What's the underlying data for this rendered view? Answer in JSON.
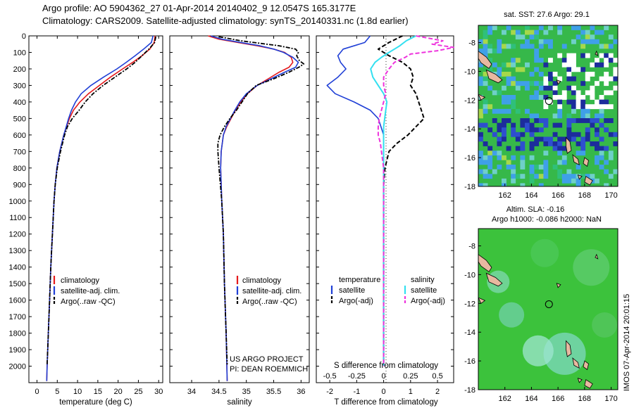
{
  "header": {
    "title_line1": "Argo profile: AO 5904362_27 01-Apr-2014 20140402_9 12.0547S 165.3177E",
    "title_line2": "Climatology: CARS2009. Satellite-adjusted climatology: synTS_20140331.nc (1.8d earlier)"
  },
  "colors": {
    "climatology": "#e41a1c",
    "satellite": "#1f3fd6",
    "argo": "#000000",
    "cyan": "#33e0f0",
    "magenta": "#ee33dd",
    "map_green": "#3cc23c",
    "land": "#e8b8a0"
  },
  "depth_axis": {
    "ylim": [
      0,
      2100
    ],
    "ticks": [
      0,
      100,
      200,
      300,
      400,
      500,
      600,
      700,
      800,
      900,
      1000,
      1100,
      1200,
      1300,
      1400,
      1500,
      1600,
      1700,
      1800,
      1900,
      2000
    ]
  },
  "chart_data": [
    {
      "type": "line",
      "id": "temperature",
      "xlabel": "temperature (deg C)",
      "xlim": [
        -2,
        31
      ],
      "xticks": [
        0,
        5,
        10,
        15,
        20,
        25,
        30
      ],
      "legend": [
        "climatology",
        "satellite-adj. clim.",
        "Argo(..raw -QC)"
      ],
      "series": [
        {
          "name": "climatology",
          "depth": [
            0,
            40,
            80,
            120,
            160,
            200,
            250,
            300,
            350,
            400,
            450,
            500,
            550,
            600,
            700,
            800,
            900,
            1000,
            1200,
            1400,
            1600,
            1800,
            2000,
            2090
          ],
          "values": [
            29.1,
            28.9,
            27.8,
            25.9,
            23.6,
            21.1,
            18.1,
            15.4,
            12.7,
            10.6,
            9.0,
            8.0,
            7.3,
            6.6,
            5.6,
            4.9,
            4.5,
            4.2,
            3.8,
            3.4,
            3.1,
            2.8,
            2.5,
            2.4
          ]
        },
        {
          "name": "satellite-adj. clim.",
          "depth": [
            0,
            40,
            80,
            120,
            160,
            200,
            250,
            300,
            350,
            400,
            450,
            500,
            550,
            600,
            700,
            800,
            900,
            1000,
            1200,
            1400,
            1600,
            1800,
            2000,
            2090
          ],
          "values": [
            28.6,
            28.2,
            26.3,
            24.2,
            22.0,
            19.7,
            16.4,
            13.3,
            10.9,
            9.5,
            8.5,
            7.8,
            7.2,
            6.6,
            5.6,
            4.9,
            4.5,
            4.2,
            3.8,
            3.4,
            3.1,
            2.8,
            2.5,
            2.4
          ]
        },
        {
          "name": "Argo(..raw -QC)",
          "depth": [
            5,
            40,
            80,
            120,
            160,
            200,
            250,
            300,
            350,
            400,
            450,
            500,
            550,
            600,
            700,
            800,
            900,
            1000,
            1200,
            1400,
            1600,
            1800,
            1990
          ],
          "values": [
            29.3,
            29.0,
            27.6,
            25.9,
            24.2,
            22.1,
            19.2,
            16.3,
            13.8,
            11.9,
            10.4,
            8.7,
            7.5,
            6.8,
            5.8,
            5.0,
            4.5,
            4.2,
            3.8,
            3.4,
            3.1,
            2.8,
            2.5
          ]
        }
      ]
    },
    {
      "type": "line",
      "id": "salinity",
      "xlabel": "salinity",
      "xlim": [
        33.6,
        36.15
      ],
      "xticks": [
        34,
        34.5,
        35,
        35.5,
        36
      ],
      "legend": [
        "climatology",
        "satellite-adj. clim.",
        "Argo(..raw -QC)"
      ],
      "annotation_line1": "US ARGO PROJECT",
      "annotation_line2": "PI: DEAN ROEMMICH",
      "series": [
        {
          "name": "climatology",
          "depth": [
            0,
            20,
            40,
            60,
            80,
            100,
            130,
            160,
            190,
            220,
            260,
            300,
            350,
            400,
            450,
            500,
            550,
            600,
            700,
            800,
            1000,
            1200,
            1500,
            1800,
            2090
          ],
          "values": [
            34.3,
            34.5,
            34.85,
            35.2,
            35.5,
            35.7,
            35.82,
            35.85,
            35.78,
            35.6,
            35.4,
            35.2,
            35.02,
            34.9,
            34.8,
            34.72,
            34.64,
            34.58,
            34.54,
            34.53,
            34.55,
            34.58,
            34.6,
            34.63,
            34.65
          ]
        },
        {
          "name": "satellite-adj. clim.",
          "depth": [
            0,
            20,
            40,
            60,
            80,
            100,
            130,
            160,
            190,
            220,
            260,
            300,
            350,
            400,
            450,
            500,
            550,
            600,
            700,
            800,
            1000,
            1200,
            1500,
            1800,
            2090
          ],
          "values": [
            34.35,
            34.55,
            34.9,
            35.25,
            35.5,
            35.68,
            35.85,
            35.95,
            35.9,
            35.7,
            35.45,
            35.2,
            35.0,
            34.88,
            34.79,
            34.71,
            34.63,
            34.58,
            34.54,
            34.53,
            34.55,
            34.58,
            34.6,
            34.63,
            34.65
          ]
        },
        {
          "name": "Argo(..raw -QC)",
          "depth": [
            5,
            30,
            60,
            80,
            100,
            120,
            150,
            170,
            190,
            220,
            260,
            300,
            350,
            400,
            450,
            500,
            550,
            600,
            650,
            700,
            800,
            1000,
            1200,
            1500,
            1800,
            1990
          ],
          "values": [
            34.5,
            34.9,
            35.6,
            35.9,
            35.95,
            35.92,
            35.97,
            36.05,
            35.96,
            35.78,
            35.5,
            35.18,
            35.02,
            34.92,
            34.82,
            34.7,
            34.6,
            34.52,
            34.48,
            34.48,
            34.5,
            34.55,
            34.58,
            34.6,
            34.63,
            34.65
          ]
        }
      ]
    },
    {
      "type": "line",
      "id": "difference",
      "xlabel": "T difference from climatology",
      "xlim": [
        -2.5,
        2.6
      ],
      "xticks": [
        -2,
        -1,
        0,
        1,
        2
      ],
      "top_xlabel": "S difference from climatology",
      "top_xticks": [
        -0.5,
        -0.25,
        0,
        0.25,
        0.5
      ],
      "legend_temperature_title": "temperature",
      "legend_salinity_title": "salinity",
      "legend": [
        "satellite",
        "Argo(-adj)",
        "satellite",
        "Argo(-adj)"
      ],
      "series": [
        {
          "name": "T satellite",
          "depth": [
            0,
            40,
            80,
            120,
            160,
            200,
            250,
            300,
            350,
            400,
            450,
            500,
            550,
            600,
            650,
            700,
            800,
            900,
            1000,
            1200,
            1500,
            1800,
            2000
          ],
          "values": [
            -0.5,
            -0.7,
            -1.5,
            -1.7,
            -1.6,
            -1.4,
            -1.7,
            -2.1,
            -1.8,
            -1.1,
            -0.5,
            -0.2,
            -0.1,
            0,
            0,
            0,
            0,
            0,
            0,
            0,
            0,
            0,
            0
          ]
        },
        {
          "name": "T Argo(-adj)",
          "depth": [
            0,
            40,
            80,
            120,
            160,
            200,
            250,
            300,
            350,
            400,
            450,
            500,
            550,
            600,
            650,
            700,
            800,
            900,
            1000,
            1200,
            1500,
            1800,
            2000
          ],
          "values": [
            0.7,
            0.2,
            -0.2,
            0.2,
            0.7,
            1.0,
            1.1,
            1.0,
            1.2,
            1.3,
            1.4,
            1.5,
            1.2,
            0.9,
            0.5,
            0.2,
            0.05,
            0,
            0,
            0,
            0,
            0,
            0
          ]
        },
        {
          "name": "S satellite",
          "depth": [
            0,
            30,
            60,
            80,
            100,
            130,
            160,
            200,
            250,
            300,
            350,
            400,
            450,
            500,
            550,
            600,
            650,
            700,
            800,
            1000,
            1200,
            1500,
            1800,
            2000
          ],
          "values": [
            0.3,
            0.21,
            0.15,
            0.1,
            0.05,
            -0.02,
            -0.08,
            -0.12,
            -0.1,
            -0.05,
            0,
            0.03,
            0.02,
            0.01,
            0,
            0,
            0,
            0,
            0,
            0,
            0,
            0,
            0,
            0
          ]
        },
        {
          "name": "S Argo(-adj)",
          "depth": [
            0,
            30,
            50,
            70,
            90,
            110,
            130,
            160,
            200,
            250,
            300,
            350,
            400,
            450,
            500,
            550,
            600,
            650,
            700,
            800,
            1000,
            1200,
            1500,
            1800,
            2000
          ],
          "values": [
            0.3,
            0.55,
            0.45,
            0.65,
            0.5,
            0.25,
            0.2,
            0.1,
            0.05,
            0,
            0,
            0.02,
            0,
            -0.02,
            -0.04,
            -0.05,
            -0.05,
            -0.03,
            -0.02,
            0,
            0,
            0,
            0,
            0,
            0
          ]
        }
      ]
    },
    {
      "type": "heatmap",
      "id": "sst_map",
      "title": "sat. SST: 27.6 Argo: 29.1",
      "xlim": [
        160,
        170.5
      ],
      "ylim": [
        -18,
        -6.8
      ],
      "xticks": [
        162,
        164,
        166,
        168,
        170
      ],
      "yticks": [
        -8,
        -10,
        -12,
        -14,
        -16,
        -18
      ],
      "argo_position": {
        "lon": 165.3177,
        "lat": -12.0547
      }
    },
    {
      "type": "heatmap",
      "id": "sla_map",
      "title_line1": "Altim. SLA: -0.16",
      "title_line2": "Argo h1000: -0.086 h2000: NaN",
      "xlim": [
        160,
        170.5
      ],
      "ylim": [
        -18,
        -6.8
      ],
      "xticks": [
        162,
        164,
        166,
        168,
        170
      ],
      "yticks": [
        -8,
        -10,
        -12,
        -14,
        -16,
        -18
      ],
      "argo_position": {
        "lon": 165.3177,
        "lat": -12.0547
      }
    }
  ],
  "footer": {
    "imos_stamp": "IMOS 07-Apr-2014 20:01:15"
  }
}
